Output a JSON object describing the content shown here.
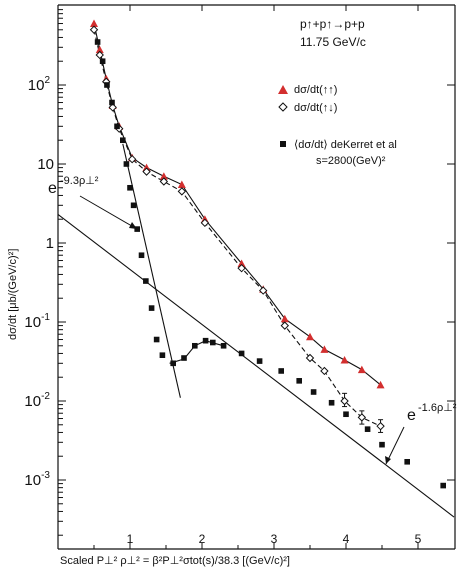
{
  "chart_data": {
    "type": "scatter",
    "title": "",
    "reaction": "p↑+p↑→p+p",
    "beam_momentum": "11.75 GeV/c",
    "xlabel": "Scaled P⊥²  ρ⊥² = β²P⊥²σtot(s)/38.3 [(GeV/c)²]",
    "ylabel": "dσ/dt [μb/(GeV/c)²]",
    "xlim": [
      0,
      5.5
    ],
    "ylim": [
      0.0003,
      1000
    ],
    "yscale": "log",
    "grid": false,
    "legend_position": "top-right",
    "x_ticks": [
      "1",
      "2",
      "3",
      "4",
      "5"
    ],
    "y_ticks": [
      {
        "value": 100,
        "base": "10",
        "exp": "2"
      },
      {
        "value": 10,
        "base": "10",
        "exp": ""
      },
      {
        "value": 1,
        "base": "1",
        "exp": ""
      },
      {
        "value": 0.1,
        "base": "10",
        "exp": "-1"
      },
      {
        "value": 0.01,
        "base": "10",
        "exp": "-2"
      },
      {
        "value": 0.001,
        "base": "10",
        "exp": "-3"
      }
    ],
    "series": [
      {
        "name": "dσ/dt(↑↑)",
        "marker": "filled-triangle",
        "color": "#d32f2f",
        "points": [
          [
            0.5,
            600
          ],
          [
            0.58,
            280
          ],
          [
            0.67,
            120
          ],
          [
            0.76,
            55
          ],
          [
            0.85,
            30
          ],
          [
            1.03,
            12
          ],
          [
            1.23,
            9
          ],
          [
            1.47,
            7
          ],
          [
            1.72,
            5.5
          ],
          [
            2.04,
            2.0
          ],
          [
            2.55,
            0.55
          ],
          [
            2.85,
            0.26
          ],
          [
            3.15,
            0.11
          ],
          [
            3.5,
            0.065
          ],
          [
            3.7,
            0.045
          ],
          [
            3.98,
            0.033
          ],
          [
            4.22,
            0.025
          ],
          [
            4.48,
            0.016
          ]
        ]
      },
      {
        "name": "dσ/dt(↑↓)",
        "marker": "open-diamond",
        "color": "#111111",
        "points": [
          [
            0.5,
            500
          ],
          [
            0.58,
            240
          ],
          [
            0.67,
            110
          ],
          [
            0.76,
            52
          ],
          [
            0.85,
            28
          ],
          [
            1.03,
            11.5
          ],
          [
            1.23,
            8
          ],
          [
            1.47,
            6
          ],
          [
            1.72,
            4.5
          ],
          [
            2.04,
            1.8
          ],
          [
            2.55,
            0.48
          ],
          [
            2.85,
            0.25
          ],
          [
            3.15,
            0.09
          ],
          [
            3.5,
            0.035
          ],
          [
            3.7,
            0.024
          ],
          [
            3.98,
            0.01
          ],
          [
            4.22,
            0.0062
          ],
          [
            4.48,
            0.0048
          ]
        ],
        "error_bars": [
          {
            "x": 3.98,
            "lo": 0.0085,
            "hi": 0.0125
          },
          {
            "x": 4.22,
            "lo": 0.0051,
            "hi": 0.0075
          },
          {
            "x": 4.48,
            "lo": 0.004,
            "hi": 0.0058
          }
        ]
      },
      {
        "name": "⟨dσ/dt⟩ deKerret et al",
        "sublabel": "s=2800(GeV)²",
        "marker": "filled-square",
        "color": "#111111",
        "points": [
          [
            0.55,
            350
          ],
          [
            0.62,
            200
          ],
          [
            0.68,
            100
          ],
          [
            0.75,
            60
          ],
          [
            0.82,
            30
          ],
          [
            0.9,
            20
          ],
          [
            0.95,
            10
          ],
          [
            1.0,
            5
          ],
          [
            1.05,
            3
          ],
          [
            1.1,
            1.5
          ],
          [
            1.16,
            0.7
          ],
          [
            1.22,
            0.33
          ],
          [
            1.3,
            0.15
          ],
          [
            1.37,
            0.06
          ],
          [
            1.45,
            0.038
          ],
          [
            1.6,
            0.03
          ],
          [
            1.75,
            0.035
          ],
          [
            1.9,
            0.05
          ],
          [
            2.05,
            0.058
          ],
          [
            2.15,
            0.055
          ],
          [
            2.3,
            0.05
          ],
          [
            2.55,
            0.04
          ],
          [
            2.8,
            0.032
          ],
          [
            3.1,
            0.024
          ],
          [
            3.35,
            0.018
          ],
          [
            3.55,
            0.013
          ],
          [
            3.8,
            0.0095
          ],
          [
            4.0,
            0.0068
          ],
          [
            4.3,
            0.0044
          ],
          [
            4.5,
            0.0028
          ],
          [
            4.85,
            0.0017
          ],
          [
            5.35,
            0.00085
          ]
        ]
      }
    ],
    "annotations": [
      {
        "base": "e",
        "exponent": "-9.3ρ⊥²"
      },
      {
        "base": "e",
        "exponent": "-1.6ρ⊥²"
      }
    ]
  }
}
